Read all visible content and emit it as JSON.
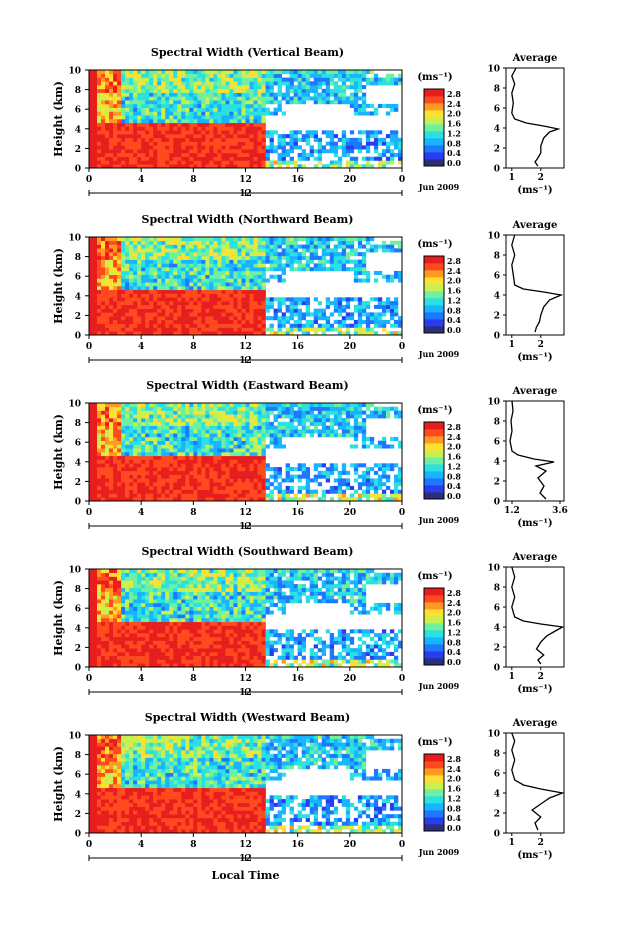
{
  "chart_data": {
    "type": "heatmap",
    "shared": {
      "ylabel": "Height (km)",
      "xlabel": "Local Time",
      "x_ticks": [
        "0",
        "4",
        "8",
        "12",
        "16",
        "20",
        "0"
      ],
      "x_range_hours": [
        0,
        24
      ],
      "y_ticks": [
        "0",
        "2",
        "4",
        "6",
        "8",
        "10"
      ],
      "y_range_km": [
        0,
        10
      ],
      "span_label": "12",
      "date_label": "Jun 2009",
      "unit_label": "(ms⁻¹)",
      "colorbar_ticks": [
        "2.8",
        "2.4",
        "2.0",
        "1.6",
        "1.2",
        "0.8",
        "0.4",
        "0.0"
      ],
      "colorbar_range": [
        0,
        2.8
      ],
      "colormap": [
        "#2b2f7a",
        "#2a3cf0",
        "#1e78ff",
        "#19b4ff",
        "#2ae0e0",
        "#6ef0a0",
        "#c8f050",
        "#ffe030",
        "#ff9a20",
        "#ff4a20",
        "#e81e1e"
      ],
      "avg_title": "Average",
      "avg_xlabel": "(ms⁻¹)",
      "avg_y_ticks": [
        "0",
        "2",
        "4",
        "6",
        "8",
        "10"
      ]
    },
    "panels": [
      {
        "title": "Spectral Width (Vertical Beam)",
        "colorbar_ticks": [
          "2.8",
          "2.4",
          "2.0",
          "1.6",
          "1.2",
          "0.8",
          "0.4",
          "0.0"
        ],
        "avg_x_ticks": [
          "1",
          "2"
        ],
        "avg_xlim": [
          0.8,
          2.8
        ],
        "avg_profile": [
          [
            1.9,
            0.2
          ],
          [
            1.8,
            0.6
          ],
          [
            1.9,
            1.0
          ],
          [
            2.0,
            1.5
          ],
          [
            2.0,
            2.2
          ],
          [
            2.1,
            3.0
          ],
          [
            2.3,
            3.6
          ],
          [
            2.6,
            3.9
          ],
          [
            2.1,
            4.2
          ],
          [
            1.5,
            4.5
          ],
          [
            1.1,
            4.9
          ],
          [
            1.0,
            5.5
          ],
          [
            1.05,
            6.5
          ],
          [
            1.0,
            7.5
          ],
          [
            1.1,
            8.4
          ],
          [
            1.0,
            9.2
          ],
          [
            1.15,
            10.0
          ]
        ]
      },
      {
        "title": "Spectral Width (Northward Beam)",
        "colorbar_ticks": [
          "2.8",
          "2.4",
          "2.0",
          "1.6",
          "1.2",
          "0.8",
          "0.4",
          "0.0"
        ],
        "avg_x_ticks": [
          "1",
          "2"
        ],
        "avg_xlim": [
          0.8,
          2.8
        ],
        "avg_profile": [
          [
            1.8,
            0.3
          ],
          [
            1.85,
            0.8
          ],
          [
            1.95,
            1.3
          ],
          [
            2.0,
            2.0
          ],
          [
            2.1,
            2.8
          ],
          [
            2.3,
            3.5
          ],
          [
            2.7,
            4.0
          ],
          [
            2.1,
            4.3
          ],
          [
            1.4,
            4.6
          ],
          [
            1.1,
            5.0
          ],
          [
            1.05,
            6.0
          ],
          [
            1.0,
            7.0
          ],
          [
            1.1,
            8.0
          ],
          [
            1.0,
            9.0
          ],
          [
            1.1,
            10.0
          ]
        ]
      },
      {
        "title": "Spectral Width (Eastward Beam)",
        "colorbar_ticks": [
          "2.8",
          "2.4",
          "2.0",
          "1.6",
          "1.2",
          "0.8",
          "0.4",
          "0.0"
        ],
        "avg_x_ticks": [
          "1.2",
          "3.6"
        ],
        "avg_xlim": [
          0.9,
          3.8
        ],
        "avg_profile": [
          [
            2.9,
            0.2
          ],
          [
            2.6,
            0.8
          ],
          [
            2.8,
            1.5
          ],
          [
            2.5,
            2.3
          ],
          [
            2.9,
            3.0
          ],
          [
            2.4,
            3.5
          ],
          [
            3.3,
            3.9
          ],
          [
            2.3,
            4.2
          ],
          [
            1.5,
            4.6
          ],
          [
            1.2,
            5.0
          ],
          [
            1.1,
            6.0
          ],
          [
            1.2,
            7.0
          ],
          [
            1.15,
            8.0
          ],
          [
            1.25,
            9.0
          ],
          [
            1.2,
            10.0
          ]
        ]
      },
      {
        "title": "Spectral Width (Southward Beam)",
        "colorbar_ticks": [
          "2.8",
          "2.4",
          "2.0",
          "1.6",
          "1.2",
          "0.8",
          "0.4",
          "0.0"
        ],
        "avg_x_ticks": [
          "1",
          "2"
        ],
        "avg_xlim": [
          0.8,
          2.8
        ],
        "avg_profile": [
          [
            2.0,
            0.3
          ],
          [
            1.9,
            0.7
          ],
          [
            2.1,
            1.2
          ],
          [
            1.85,
            1.8
          ],
          [
            2.0,
            2.5
          ],
          [
            2.2,
            3.1
          ],
          [
            2.5,
            3.6
          ],
          [
            2.75,
            4.0
          ],
          [
            2.0,
            4.3
          ],
          [
            1.4,
            4.6
          ],
          [
            1.1,
            5.0
          ],
          [
            1.0,
            6.0
          ],
          [
            1.1,
            7.0
          ],
          [
            1.0,
            8.0
          ],
          [
            1.1,
            9.0
          ],
          [
            1.0,
            10.0
          ]
        ]
      },
      {
        "title": "Spectral Width (Westward Beam)",
        "colorbar_ticks": [
          "2.8",
          "2.4",
          "2.0",
          "1.6",
          "1.2",
          "0.8",
          "0.4",
          "0.0"
        ],
        "avg_x_ticks": [
          "1",
          "2"
        ],
        "avg_xlim": [
          0.8,
          2.8
        ],
        "avg_profile": [
          [
            1.9,
            0.3
          ],
          [
            1.8,
            1.0
          ],
          [
            2.0,
            1.6
          ],
          [
            1.7,
            2.3
          ],
          [
            2.0,
            2.9
          ],
          [
            2.3,
            3.5
          ],
          [
            2.75,
            4.0
          ],
          [
            2.0,
            4.4
          ],
          [
            1.4,
            4.8
          ],
          [
            1.1,
            5.3
          ],
          [
            1.0,
            6.3
          ],
          [
            1.1,
            7.3
          ],
          [
            1.0,
            8.3
          ],
          [
            1.1,
            9.2
          ],
          [
            1.0,
            10.0
          ]
        ]
      }
    ]
  }
}
